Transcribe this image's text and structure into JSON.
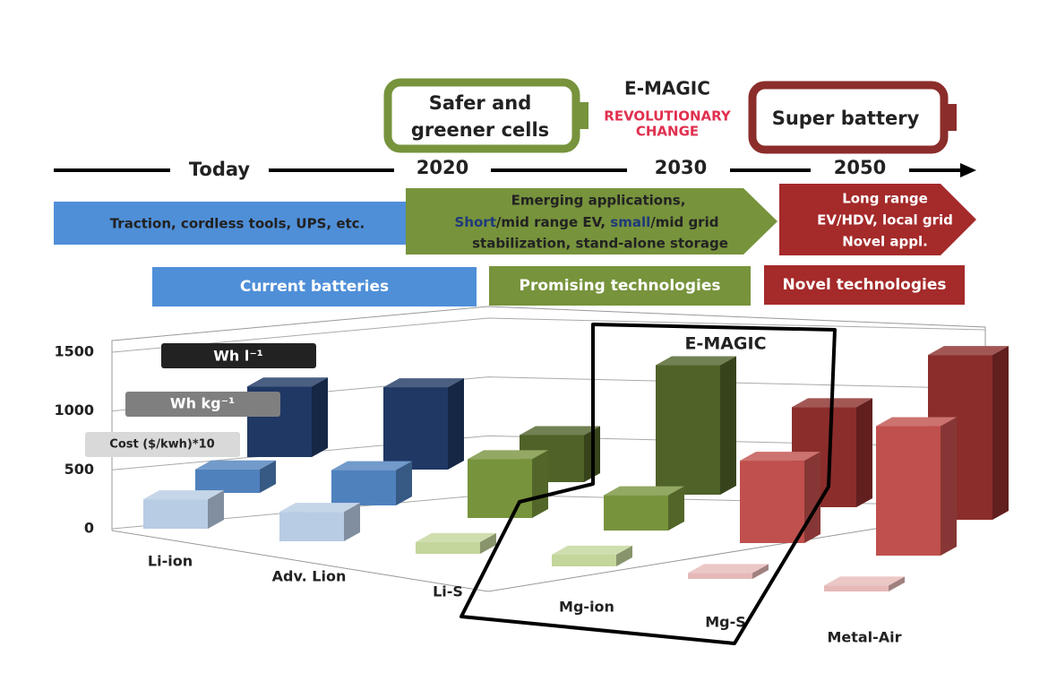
{
  "header": {
    "battery_left": [
      "Safer and",
      "greener cells"
    ],
    "project": "E-MAGIC",
    "change": [
      "REVOLUTIONARY",
      "CHANGE"
    ],
    "battery_right": "Super battery"
  },
  "timeline": [
    "Today",
    "2020",
    "2030",
    "2050"
  ],
  "applications": {
    "current": "Traction, cordless tools, UPS, etc.",
    "emerging": {
      "line1": "Emerging applications,",
      "line2": [
        "Short",
        "/mid range EV, ",
        "small",
        "/mid grid"
      ],
      "line3": "stabilization, stand-alone storage"
    },
    "future": [
      "Long range",
      "EV/HDV, local grid",
      "Novel appl."
    ]
  },
  "bands": [
    "Current batteries",
    "Promising technologies",
    "Novel technologies"
  ],
  "chart_data": {
    "type": "bar3d",
    "categories": [
      "Li-ion",
      "Adv. Lion",
      "Li-S",
      "Mg-ion",
      "Mg-S",
      "Metal-Air"
    ],
    "series": [
      {
        "name": "Cost ($/kwh)*10",
        "colors": [
          "#b8cce4",
          "#b8cce4",
          "#c3d69b",
          "#c3d69b",
          "#e6b9b8",
          "#e6b9b8"
        ],
        "values": [
          250,
          250,
          100,
          100,
          50,
          50
        ]
      },
      {
        "name": "Wh kg⁻¹",
        "colors": [
          "#4f81bd",
          "#4f81bd",
          "#77933c",
          "#77933c",
          "#c0504d",
          "#c0504d"
        ],
        "values": [
          200,
          300,
          500,
          300,
          700,
          1100
        ]
      },
      {
        "name": "Wh l⁻¹",
        "colors": [
          "#1f3864",
          "#1f3864",
          "#4f6228",
          "#4f6228",
          "#8b2d2b",
          "#8b2d2b"
        ],
        "values": [
          600,
          700,
          400,
          1100,
          850,
          1400
        ]
      }
    ],
    "ylim": [
      0,
      1500
    ],
    "yticks": [
      0,
      500,
      1000,
      1500
    ],
    "grid": true,
    "highlight_label": "E-MAGIC"
  }
}
